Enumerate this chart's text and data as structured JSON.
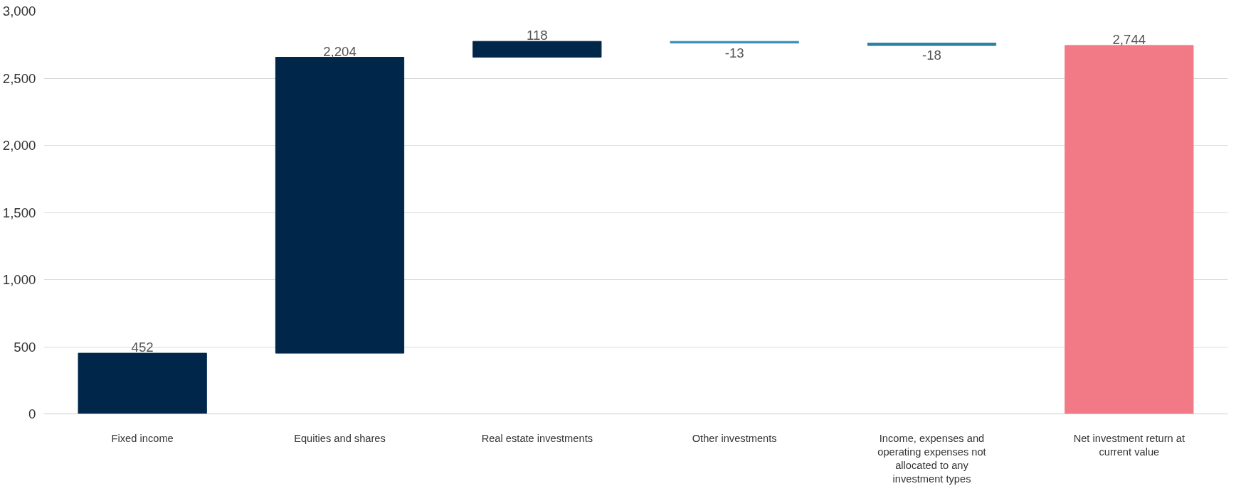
{
  "chart_data": {
    "type": "bar",
    "categories": [
      "Fixed income",
      "Equities and shares",
      "Real estate investments",
      "Other investments",
      "Income, expenses and operating expenses not allocated to any investment types",
      "Net investment return at current value"
    ],
    "values": [
      452,
      2204,
      118,
      -13,
      -18,
      2744
    ],
    "base": [
      0,
      452,
      2656,
      2774,
      2761,
      0
    ],
    "colors": [
      "#00274a",
      "#00274a",
      "#00274a",
      "#3a8fb7",
      "#2a7fa5",
      "#f27a87"
    ],
    "value_labels": [
      "452",
      "2,204",
      "118",
      "-13",
      "-18",
      "2,744"
    ],
    "ylim": [
      0,
      3000
    ],
    "yticks": [
      0,
      {
        "value": 500,
        "label": "500"
      },
      {
        "value": 1000,
        "label": "1,000"
      },
      {
        "value": 1500,
        "label": "1,500"
      },
      {
        "value": 2000,
        "label": "2,000"
      },
      {
        "value": 2500,
        "label": "2,500"
      },
      {
        "value": 3000,
        "label": "3,000"
      }
    ],
    "grid": "y"
  }
}
